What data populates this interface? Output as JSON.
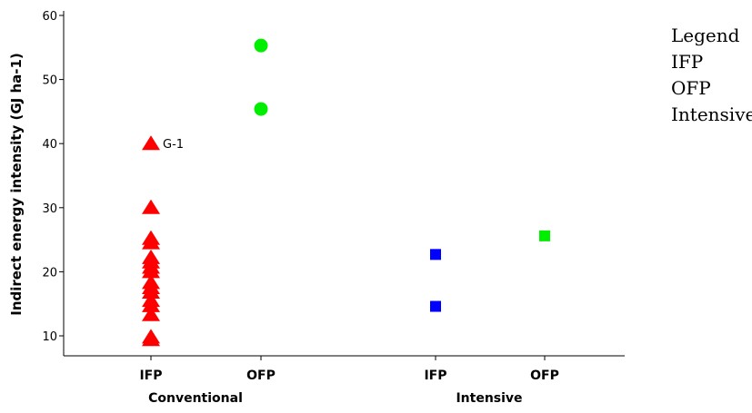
{
  "chart_data": {
    "type": "scatter",
    "ylabel": "Indirect energy intensity (GJ ha-1)",
    "ylim": [
      5,
      61
    ],
    "yticks": [
      10,
      20,
      30,
      40,
      50,
      60
    ],
    "grid": false,
    "categories": [
      {
        "key": "conv_ifp",
        "label": "IFP"
      },
      {
        "key": "conv_ofp",
        "label": "OFP"
      },
      {
        "key": "int_ifp",
        "label": "IFP"
      },
      {
        "key": "int_ofp",
        "label": "OFP"
      }
    ],
    "groups": [
      {
        "label": "Conventional",
        "categories": [
          "conv_ifp",
          "conv_ofp"
        ]
      },
      {
        "label": "Intensive",
        "categories": [
          "int_ifp",
          "int_ofp"
        ]
      }
    ],
    "series": [
      {
        "key": "ifp",
        "marker": "triangle",
        "color": "#ff0000",
        "points": [
          {
            "category": "conv_ifp",
            "y": 40.0,
            "label": "G-1"
          },
          {
            "category": "conv_ifp",
            "y": 30.0
          },
          {
            "category": "conv_ifp",
            "y": 25.2
          },
          {
            "category": "conv_ifp",
            "y": 24.5
          },
          {
            "category": "conv_ifp",
            "y": 22.2
          },
          {
            "category": "conv_ifp",
            "y": 21.5
          },
          {
            "category": "conv_ifp",
            "y": 20.7
          },
          {
            "category": "conv_ifp",
            "y": 20.0
          },
          {
            "category": "conv_ifp",
            "y": 18.3
          },
          {
            "category": "conv_ifp",
            "y": 17.5
          },
          {
            "category": "conv_ifp",
            "y": 16.8
          },
          {
            "category": "conv_ifp",
            "y": 15.5
          },
          {
            "category": "conv_ifp",
            "y": 14.7
          },
          {
            "category": "conv_ifp",
            "y": 13.3
          },
          {
            "category": "conv_ifp",
            "y": 9.8
          },
          {
            "category": "conv_ifp",
            "y": 9.4
          }
        ]
      },
      {
        "key": "ofp",
        "marker": "circle",
        "color": "#00ee00",
        "points": [
          {
            "category": "conv_ofp",
            "y": 55.3
          },
          {
            "category": "conv_ofp",
            "y": 45.4
          }
        ]
      },
      {
        "key": "intensive",
        "marker": "square",
        "color": "#0000ff",
        "points": [
          {
            "category": "int_ifp",
            "y": 22.7
          },
          {
            "category": "int_ifp",
            "y": 14.6
          }
        ]
      },
      {
        "key": "intensive_ofp",
        "marker": "square",
        "color": "#00ee00",
        "points": [
          {
            "category": "int_ofp",
            "y": 25.6
          }
        ]
      }
    ],
    "legend": {
      "placement": "top-right",
      "title": "Legend",
      "items": [
        "IFP",
        "OFP",
        "Intensive"
      ]
    }
  }
}
